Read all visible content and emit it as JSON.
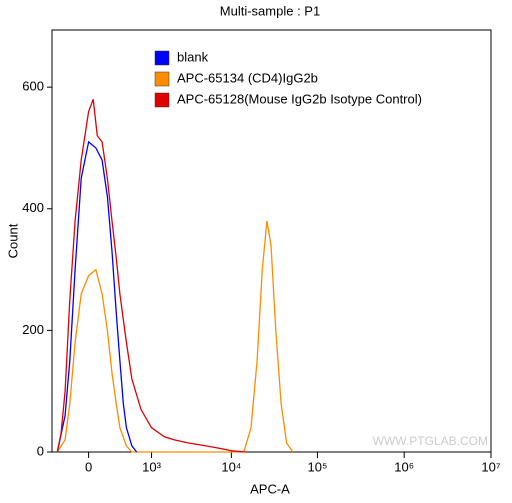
{
  "chart_data": {
    "type": "line",
    "title": "Multi-sample : P1",
    "x_label": "APC-A",
    "y_label": "Count",
    "watermark": "WWW.PTGLAB.COM",
    "xscale": "biexponential",
    "xlim": [
      -380,
      10000000
    ],
    "ylim": [
      0,
      694
    ],
    "xticks": [
      0,
      {
        "value": 1000,
        "label": "10³"
      },
      {
        "value": 10000,
        "label": "10⁴"
      },
      {
        "value": 100000,
        "label": "10⁵"
      },
      {
        "value": 1000000,
        "label": "10⁶"
      },
      {
        "value": 10000000,
        "label": "10⁷"
      }
    ],
    "yticks": [
      0,
      200,
      400,
      600
    ],
    "series": [
      {
        "name": "blank",
        "color": "#0000ff",
        "x": [
          -300,
          -200,
          -150,
          -100,
          -50,
          0,
          50,
          100,
          150,
          200,
          250,
          300,
          350,
          400,
          500,
          600
        ],
        "values": [
          0,
          60,
          150,
          300,
          450,
          510,
          500,
          480,
          420,
          330,
          230,
          150,
          80,
          40,
          10,
          0
        ]
      },
      {
        "name": "APC-65134 (CD4)IgG2b",
        "color": "#ff8c00",
        "x": [
          -300,
          -200,
          -150,
          -100,
          -50,
          0,
          50,
          100,
          150,
          200,
          250,
          300,
          400,
          500,
          14000,
          17000,
          20000,
          23000,
          26000,
          29000,
          33000,
          38000,
          44000,
          52000
        ],
        "values": [
          0,
          20,
          80,
          180,
          260,
          290,
          300,
          260,
          200,
          130,
          80,
          40,
          10,
          0,
          0,
          40,
          150,
          300,
          380,
          340,
          200,
          80,
          15,
          0
        ]
      },
      {
        "name": "APC-65128(Mouse IgG2b Isotype Control)",
        "color": "#e00000",
        "x": [
          -300,
          -250,
          -200,
          -150,
          -100,
          -50,
          0,
          30,
          60,
          100,
          150,
          200,
          250,
          300,
          400,
          500,
          700,
          1000,
          1500,
          2000,
          3000,
          5000,
          8000,
          10000,
          15000
        ],
        "values": [
          0,
          30,
          100,
          250,
          380,
          480,
          560,
          580,
          520,
          510,
          450,
          380,
          320,
          260,
          180,
          120,
          70,
          40,
          25,
          20,
          15,
          10,
          5,
          2,
          0
        ]
      }
    ]
  }
}
